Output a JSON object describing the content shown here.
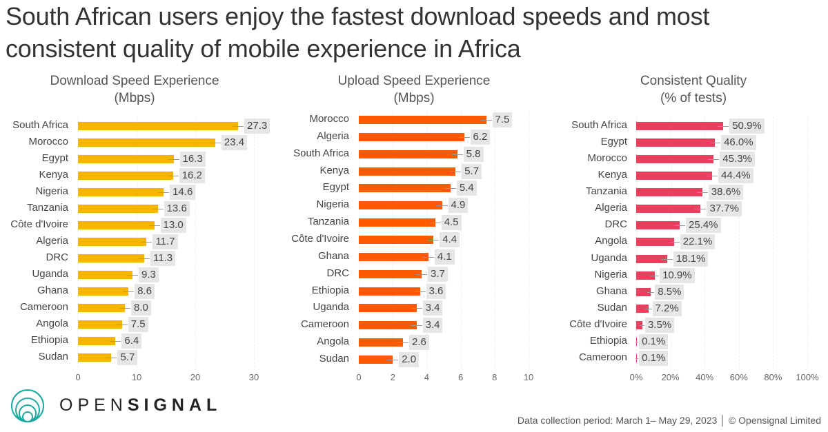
{
  "headline": [
    "South African users enjoy the fastest download speeds and most",
    "consistent quality of mobile experience in Africa"
  ],
  "chart_data": [
    {
      "type": "bar",
      "title": [
        "Download Speed Experience",
        "(Mbps)"
      ],
      "color": "#f7b500",
      "categories": [
        "South Africa",
        "Morocco",
        "Egypt",
        "Kenya",
        "Nigeria",
        "Tanzania",
        "Côte d'Ivoire",
        "Algeria",
        "DRC",
        "Uganda",
        "Ghana",
        "Cameroon",
        "Angola",
        "Ethiopia",
        "Sudan"
      ],
      "values": [
        27.3,
        23.4,
        16.3,
        16.2,
        14.6,
        13.6,
        13.0,
        11.7,
        11.3,
        9.3,
        8.6,
        8.0,
        7.5,
        6.4,
        5.7
      ],
      "labels": [
        "27.3",
        "23.4",
        "16.3",
        "16.2",
        "14.6",
        "13.6",
        "13.0",
        "11.7",
        "11.3",
        "9.3",
        "8.6",
        "8.0",
        "7.5",
        "6.4",
        "5.7"
      ],
      "xlim": [
        0,
        30
      ],
      "ticks": [
        0,
        10,
        20,
        30
      ],
      "tick_labels": [
        "0",
        "10",
        "20",
        "30"
      ]
    },
    {
      "type": "bar",
      "title": [
        "Upload Speed Experience",
        "(Mbps)"
      ],
      "color": "#ff5a00",
      "categories": [
        "Morocco",
        "Algeria",
        "South Africa",
        "Kenya",
        "Egypt",
        "Nigeria",
        "Tanzania",
        "Côte d'Ivoire",
        "Ghana",
        "DRC",
        "Ethiopia",
        "Uganda",
        "Cameroon",
        "Angola",
        "Sudan"
      ],
      "values": [
        7.5,
        6.2,
        5.8,
        5.7,
        5.4,
        4.9,
        4.5,
        4.4,
        4.1,
        3.7,
        3.6,
        3.4,
        3.4,
        2.6,
        2.0
      ],
      "labels": [
        "7.5",
        "6.2",
        "5.8",
        "5.7",
        "5.4",
        "4.9",
        "4.5",
        "4.4",
        "4.1",
        "3.7",
        "3.6",
        "3.4",
        "3.4",
        "2.6",
        "2.0"
      ],
      "xlim": [
        0,
        10
      ],
      "ticks": [
        0,
        2,
        4,
        6,
        8,
        10
      ],
      "tick_labels": [
        "0",
        "2",
        "4",
        "6",
        "8",
        "10"
      ]
    },
    {
      "type": "bar",
      "title": [
        "Consistent Quality",
        "(% of tests)"
      ],
      "color": "#e8405e",
      "categories": [
        "South Africa",
        "Egypt",
        "Morocco",
        "Kenya",
        "Tanzania",
        "Algeria",
        "DRC",
        "Angola",
        "Uganda",
        "Nigeria",
        "Ghana",
        "Sudan",
        "Côte d'Ivoire",
        "Ethiopia",
        "Cameroon"
      ],
      "values": [
        50.9,
        46.0,
        45.3,
        44.4,
        38.6,
        37.7,
        25.4,
        22.1,
        18.1,
        10.9,
        8.5,
        7.2,
        3.5,
        0.1,
        0.1
      ],
      "labels": [
        "50.9%",
        "46.0%",
        "45.3%",
        "44.4%",
        "38.6%",
        "37.7%",
        "25.4%",
        "22.1%",
        "18.1%",
        "10.9%",
        "8.5%",
        "7.2%",
        "3.5%",
        "0.1%",
        "0.1%"
      ],
      "xlim": [
        0,
        100
      ],
      "ticks": [
        0,
        20,
        40,
        60,
        80,
        100
      ],
      "tick_labels": [
        "0%",
        "20%",
        "40%",
        "60%",
        "80%",
        "100%"
      ]
    }
  ],
  "logo": {
    "open": "OPEN",
    "signal": "SIGNAL",
    "color": "#1aa89c"
  },
  "footer": "Data collection period: March 1– May 29, 2023 │ © Opensignal Limited"
}
